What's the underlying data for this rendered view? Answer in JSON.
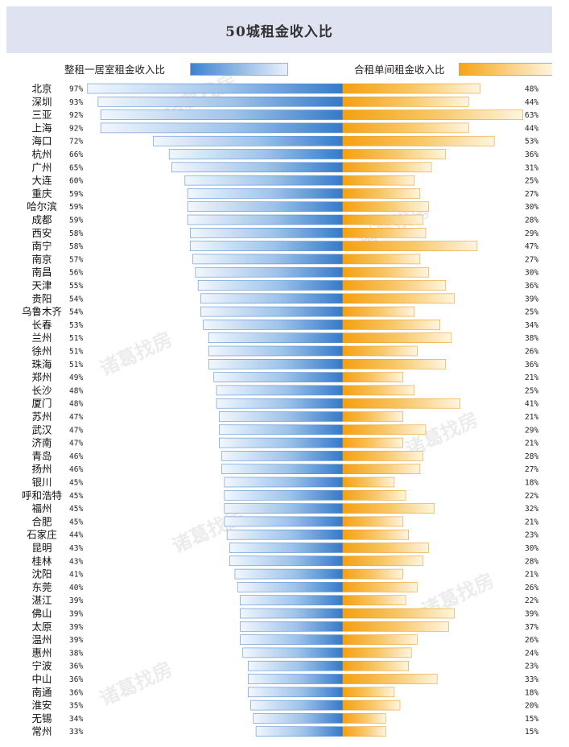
{
  "chart_data": {
    "type": "bar",
    "title": "50城租金收入比",
    "series": [
      {
        "name": "整租一居室租金收入比",
        "color": "#4f8fd4",
        "values": [
          97,
          93,
          92,
          92,
          72,
          66,
          65,
          60,
          59,
          59,
          59,
          58,
          58,
          57,
          56,
          55,
          54,
          54,
          53,
          51,
          51,
          51,
          49,
          48,
          48,
          47,
          47,
          47,
          46,
          46,
          45,
          45,
          45,
          45,
          44,
          43,
          43,
          41,
          40,
          39,
          39,
          39,
          39,
          38,
          36,
          36,
          36,
          35,
          34,
          33
        ]
      },
      {
        "name": "合租单间租金收入比",
        "color": "#f5a623",
        "values": [
          48,
          44,
          63,
          44,
          53,
          36,
          31,
          25,
          27,
          30,
          28,
          29,
          47,
          27,
          30,
          36,
          39,
          25,
          34,
          38,
          26,
          36,
          21,
          25,
          41,
          21,
          29,
          21,
          28,
          27,
          18,
          22,
          32,
          21,
          23,
          30,
          28,
          21,
          26,
          22,
          39,
          37,
          26,
          24,
          23,
          33,
          18,
          20,
          15,
          15
        ]
      }
    ],
    "categories": [
      "北京",
      "深圳",
      "三亚",
      "上海",
      "海口",
      "杭州",
      "广州",
      "大连",
      "重庆",
      "哈尔滨",
      "成都",
      "西安",
      "南宁",
      "南京",
      "南昌",
      "天津",
      "贵阳",
      "乌鲁木齐",
      "长春",
      "兰州",
      "徐州",
      "珠海",
      "郑州",
      "长沙",
      "厦门",
      "苏州",
      "武汉",
      "济南",
      "青岛",
      "扬州",
      "银川",
      "呼和浩特",
      "福州",
      "合肥",
      "石家庄",
      "昆明",
      "桂林",
      "沈阳",
      "东莞",
      "湛江",
      "佛山",
      "太原",
      "温州",
      "惠州",
      "宁波",
      "中山",
      "南通",
      "淮安",
      "无锡",
      "常州"
    ],
    "percent_suffix": "%"
  },
  "watermark": "诸葛找房"
}
